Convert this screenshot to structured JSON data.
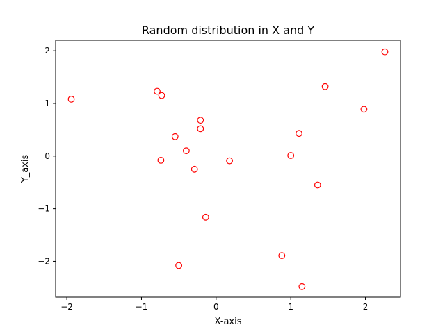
{
  "chart_data": {
    "type": "scatter",
    "title": "Random distribution in X and Y",
    "xlabel": "X-axis",
    "ylabel": "Y_axis",
    "xlim": [
      -2.15,
      2.47
    ],
    "ylim": [
      -2.68,
      2.2
    ],
    "xticks": [
      -2,
      -1,
      0,
      1,
      2
    ],
    "yticks": [
      -2,
      -1,
      0,
      1,
      2
    ],
    "grid": false,
    "legend": "none",
    "marker": "hollow-circle",
    "marker_color": "#ff0000",
    "x": [
      -1.94,
      -0.79,
      -0.73,
      -0.55,
      -0.21,
      -0.21,
      -0.4,
      -0.74,
      -0.29,
      0.18,
      -0.14,
      -0.5,
      1.46,
      1.98,
      2.26,
      1.11,
      1.0,
      1.36,
      0.88,
      1.15
    ],
    "y": [
      1.08,
      1.23,
      1.15,
      0.37,
      0.68,
      0.52,
      0.1,
      -0.08,
      -0.25,
      -0.09,
      -1.16,
      -2.08,
      1.32,
      0.89,
      1.98,
      0.43,
      0.01,
      -0.55,
      -1.89,
      -2.48
    ]
  }
}
